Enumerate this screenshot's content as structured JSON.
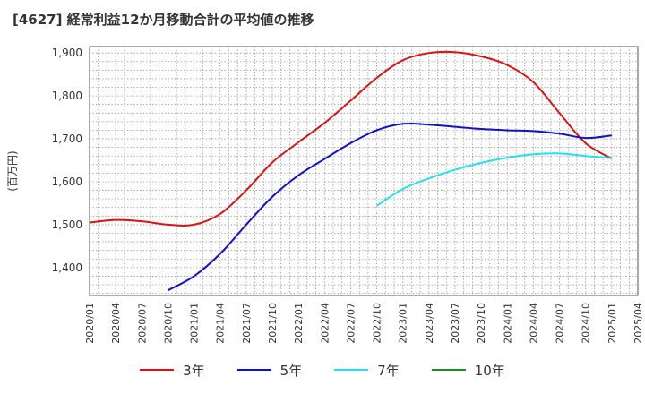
{
  "chart_data": {
    "type": "line",
    "title": "[4627]  経常利益12か月移動合計の平均値の推移",
    "ylabel": "(百万円)",
    "xlabel": "",
    "ylim": [
      1335,
      1915
    ],
    "yticks": [
      1400,
      1500,
      1600,
      1700,
      1800,
      1900
    ],
    "ytick_labels": [
      "1,400",
      "1,500",
      "1,600",
      "1,700",
      "1,800",
      "1,900"
    ],
    "xlim": [
      "2020/01",
      "2025/04"
    ],
    "xtick_labels": [
      "2020/01",
      "2020/04",
      "2020/07",
      "2020/10",
      "2021/01",
      "2021/04",
      "2021/07",
      "2021/10",
      "2022/01",
      "2022/04",
      "2022/07",
      "2022/10",
      "2023/01",
      "2023/04",
      "2023/07",
      "2023/10",
      "2024/01",
      "2024/04",
      "2024/07",
      "2024/10",
      "2025/01",
      "2025/04"
    ],
    "grid": true,
    "legend_position": "bottom",
    "series": [
      {
        "name": "3年",
        "color": "#dd1111",
        "x": [
          "2020/01",
          "2020/04",
          "2020/07",
          "2020/10",
          "2021/01",
          "2021/04",
          "2021/07",
          "2021/10",
          "2022/01",
          "2022/04",
          "2022/07",
          "2022/10",
          "2023/01",
          "2023/04",
          "2023/07",
          "2023/10",
          "2024/01",
          "2024/04",
          "2024/07",
          "2024/10",
          "2025/01"
        ],
        "values": [
          1505,
          1511,
          1508,
          1500,
          1500,
          1525,
          1580,
          1645,
          1692,
          1737,
          1789,
          1842,
          1883,
          1900,
          1902,
          1892,
          1872,
          1832,
          1760,
          1690,
          1654
        ]
      },
      {
        "name": "5年",
        "color": "#1111cc",
        "x": [
          "2020/10",
          "2021/01",
          "2021/04",
          "2021/07",
          "2021/10",
          "2022/01",
          "2022/04",
          "2022/07",
          "2022/10",
          "2023/01",
          "2023/04",
          "2023/07",
          "2023/10",
          "2024/01",
          "2024/04",
          "2024/07",
          "2024/10",
          "2025/01"
        ],
        "values": [
          1347,
          1380,
          1432,
          1500,
          1565,
          1615,
          1653,
          1690,
          1720,
          1735,
          1733,
          1728,
          1723,
          1720,
          1718,
          1712,
          1702,
          1708
        ]
      },
      {
        "name": "7年",
        "color": "#22e0ee",
        "x": [
          "2022/10",
          "2023/01",
          "2023/04",
          "2023/07",
          "2023/10",
          "2024/01",
          "2024/04",
          "2024/07",
          "2024/10",
          "2025/01"
        ],
        "values": [
          1544,
          1583,
          1608,
          1628,
          1644,
          1656,
          1664,
          1666,
          1660,
          1655
        ]
      },
      {
        "name": "10年",
        "color": "#228822",
        "x": [],
        "values": []
      }
    ]
  }
}
